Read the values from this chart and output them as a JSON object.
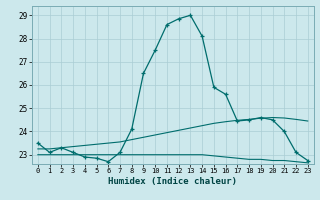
{
  "title": "",
  "xlabel": "Humidex (Indice chaleur)",
  "ylabel": "",
  "bg_color": "#cce8ec",
  "line_color": "#006d6d",
  "grid_color": "#aacdd4",
  "xlim": [
    -0.5,
    23.5
  ],
  "ylim": [
    22.6,
    29.4
  ],
  "yticks": [
    23,
    24,
    25,
    26,
    27,
    28,
    29
  ],
  "xticks": [
    0,
    1,
    2,
    3,
    4,
    5,
    6,
    7,
    8,
    9,
    10,
    11,
    12,
    13,
    14,
    15,
    16,
    17,
    18,
    19,
    20,
    21,
    22,
    23
  ],
  "curve1_x": [
    0,
    1,
    2,
    3,
    4,
    5,
    6,
    7,
    8,
    9,
    10,
    11,
    12,
    13,
    14,
    15,
    16,
    17,
    18,
    19,
    20,
    21,
    22,
    23
  ],
  "curve1_y": [
    23.5,
    23.1,
    23.3,
    23.1,
    22.9,
    22.85,
    22.7,
    23.1,
    24.1,
    26.5,
    27.5,
    28.6,
    28.85,
    29.0,
    28.1,
    25.9,
    25.6,
    24.45,
    24.5,
    24.6,
    24.5,
    24.0,
    23.1,
    22.75
  ],
  "curve2_x": [
    0,
    1,
    2,
    3,
    4,
    5,
    6,
    7,
    8,
    9,
    10,
    11,
    12,
    13,
    14,
    15,
    16,
    17,
    18,
    19,
    20,
    21,
    22,
    23
  ],
  "curve2_y": [
    23.0,
    23.0,
    23.0,
    23.0,
    23.0,
    23.0,
    23.0,
    23.0,
    23.0,
    23.0,
    23.0,
    23.0,
    23.0,
    23.0,
    23.0,
    22.95,
    22.9,
    22.85,
    22.8,
    22.8,
    22.75,
    22.75,
    22.7,
    22.65
  ],
  "curve3_x": [
    0,
    1,
    2,
    3,
    4,
    5,
    6,
    7,
    8,
    9,
    10,
    11,
    12,
    13,
    14,
    15,
    16,
    17,
    18,
    19,
    20,
    21,
    22,
    23
  ],
  "curve3_y": [
    23.25,
    23.25,
    23.3,
    23.35,
    23.4,
    23.45,
    23.5,
    23.55,
    23.65,
    23.75,
    23.85,
    23.95,
    24.05,
    24.15,
    24.25,
    24.35,
    24.42,
    24.48,
    24.52,
    24.57,
    24.6,
    24.58,
    24.52,
    24.45
  ]
}
